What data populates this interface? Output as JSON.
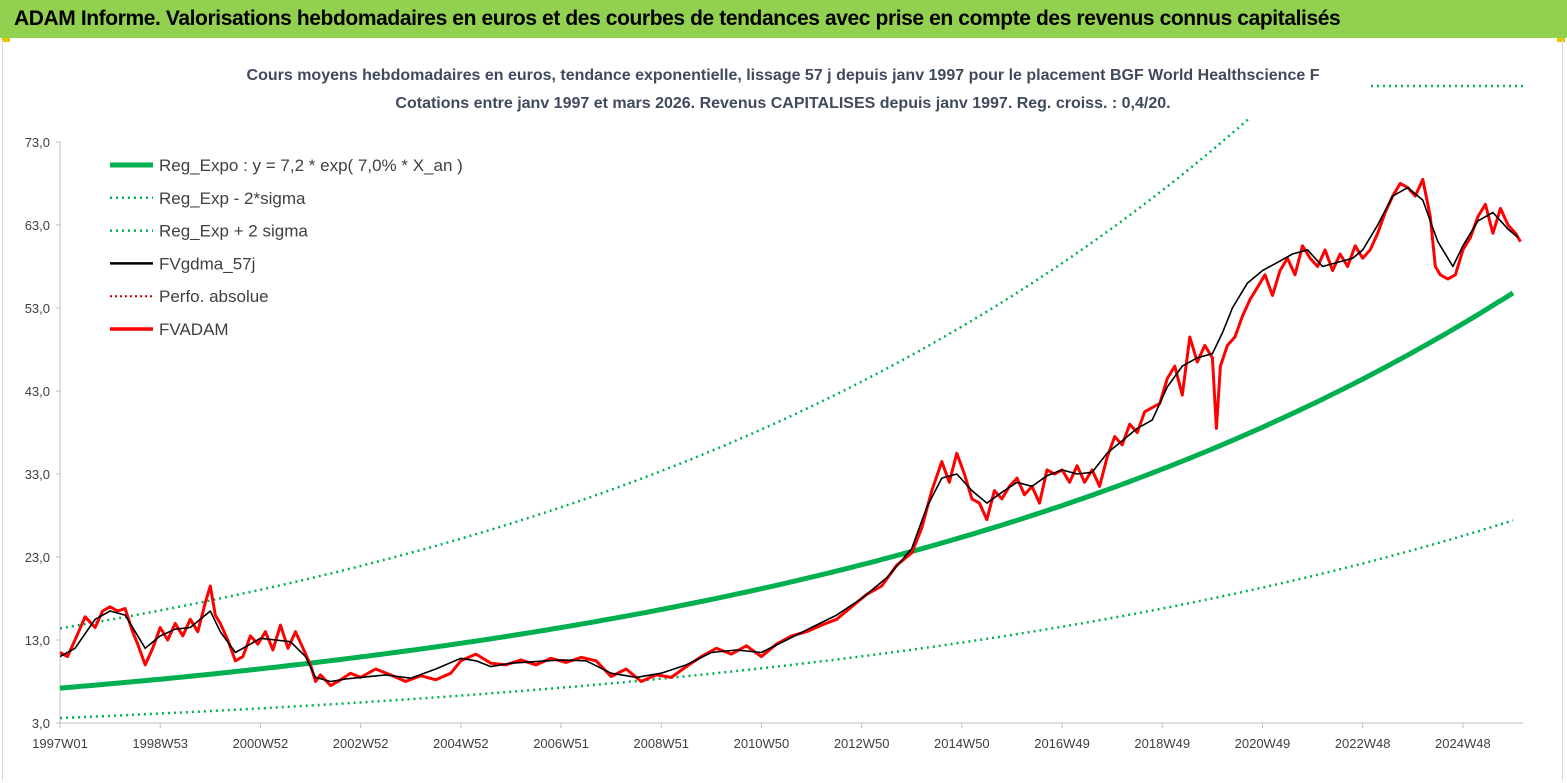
{
  "header": {
    "title": "ADAM Informe. Valorisations hebdomadaires en euros et des courbes de tendances avec prise en compte des revenus connus capitalisés"
  },
  "colors": {
    "header_bg": "#92d050",
    "trend_green": "#00b050",
    "price_red": "#ff0000",
    "smooth_black": "#000000",
    "perf_red": "#c00000"
  },
  "chart_data": {
    "type": "line",
    "title": "Cours moyens hebdomadaires en euros, tendance exponentielle, lissage 57 j depuis janv 1997  pour le placement BGF World Healthscience F",
    "subtitle": "Cotations entre janv 1997 et mars 2026. Revenus  CAPITALISES  depuis janv 1997. Reg. croiss. : 0,4/20.",
    "xlabel": "",
    "ylabel": "",
    "ylim": [
      3,
      77
    ],
    "xlim": [
      1997.0,
      2026.2
    ],
    "y_ticks": [
      "73,0",
      "63,0",
      "53,0",
      "43,0",
      "33,0",
      "23,0",
      "13,0",
      "3,0"
    ],
    "y_tick_values": [
      73,
      63,
      53,
      43,
      33,
      23,
      13,
      3
    ],
    "x_ticks": [
      "1997W01",
      "1998W53",
      "2000W52",
      "2002W52",
      "2004W52",
      "2006W51",
      "2008W51",
      "2010W50",
      "2012W50",
      "2014W50",
      "2016W49",
      "2018W49",
      "2020W49",
      "2022W48",
      "2024W48"
    ],
    "x_tick_values": [
      1997.0,
      1999.0,
      2001.0,
      2003.0,
      2005.0,
      2007.0,
      2009.0,
      2011.0,
      2013.0,
      2015.0,
      2017.0,
      2019.0,
      2021.0,
      2023.0,
      2025.0
    ],
    "grid": false,
    "legend_position": "top-left",
    "regression": {
      "a": 7.2,
      "rate": 0.07,
      "upper_factor": 2.0,
      "lower_factor": 0.5
    },
    "series": [
      {
        "name": "Reg_Expo : y = 7,2 * exp( 7,0% *  X_an )",
        "style": "solid-thick",
        "color": "#00b050"
      },
      {
        "name": "Reg_Exp - 2*sigma",
        "style": "dotted",
        "color": "#00b050"
      },
      {
        "name": "Reg_Exp + 2 sigma",
        "style": "dotted",
        "color": "#00b050"
      },
      {
        "name": "FVgdma_57j",
        "style": "solid",
        "color": "#000000",
        "x": [
          1997.0,
          1997.3,
          1997.7,
          1998.0,
          1998.3,
          1998.5,
          1998.7,
          1999.0,
          1999.3,
          1999.6,
          1999.9,
          2000.0,
          2000.2,
          2000.5,
          2000.8,
          2001.0,
          2001.3,
          2001.6,
          2001.9,
          2002.1,
          2002.4,
          2002.7,
          2003.0,
          2003.5,
          2004.0,
          2004.5,
          2005.0,
          2005.3,
          2005.6,
          2006.0,
          2006.5,
          2007.0,
          2007.5,
          2008.0,
          2008.5,
          2009.0,
          2009.5,
          2010.0,
          2010.5,
          2011.0,
          2011.5,
          2012.0,
          2012.5,
          2013.0,
          2013.5,
          2014.0,
          2014.3,
          2014.6,
          2014.9,
          2015.2,
          2015.5,
          2015.8,
          2016.1,
          2016.4,
          2016.7,
          2017.0,
          2017.3,
          2017.6,
          2017.9,
          2018.2,
          2018.5,
          2018.8,
          2019.1,
          2019.4,
          2019.7,
          2020.0,
          2020.2,
          2020.4,
          2020.7,
          2021.0,
          2021.3,
          2021.6,
          2021.9,
          2022.2,
          2022.5,
          2022.8,
          2023.0,
          2023.3,
          2023.6,
          2023.9,
          2024.2,
          2024.5,
          2024.8,
          2025.0,
          2025.3,
          2025.6,
          2025.9,
          2026.1
        ],
        "y": [
          11.0,
          12.0,
          15.5,
          16.5,
          16.0,
          14.0,
          12.0,
          13.5,
          14.3,
          14.5,
          16.0,
          16.5,
          14.0,
          11.5,
          12.5,
          13.2,
          13.0,
          12.8,
          11.0,
          8.5,
          8.0,
          8.3,
          8.5,
          8.8,
          8.4,
          9.5,
          10.8,
          10.5,
          9.8,
          10.2,
          10.4,
          10.6,
          10.5,
          9.0,
          8.5,
          9.0,
          10.0,
          11.5,
          11.8,
          11.5,
          13.0,
          14.5,
          16.0,
          18.0,
          20.5,
          24.0,
          29.0,
          32.5,
          33.0,
          31.0,
          29.5,
          30.8,
          32.0,
          31.5,
          32.8,
          33.5,
          33.0,
          33.2,
          35.5,
          37.0,
          38.5,
          39.5,
          43.5,
          46.0,
          47.0,
          47.5,
          50.0,
          53.0,
          56.0,
          57.5,
          58.5,
          59.5,
          60.0,
          58.0,
          58.5,
          59.0,
          60.0,
          63.0,
          66.5,
          67.5,
          66.0,
          61.0,
          58.0,
          60.5,
          63.5,
          64.5,
          62.5,
          61.5
        ]
      },
      {
        "name": "Perfo. absolue",
        "style": "dotted",
        "color": "#c00000"
      },
      {
        "name": "FVADAM",
        "style": "solid-thick",
        "color": "#ff0000",
        "x": [
          1997.0,
          1997.15,
          1997.3,
          1997.5,
          1997.7,
          1997.85,
          1998.0,
          1998.15,
          1998.3,
          1998.45,
          1998.55,
          1998.7,
          1998.85,
          1999.0,
          1999.15,
          1999.3,
          1999.45,
          1999.6,
          1999.75,
          1999.9,
          2000.0,
          2000.1,
          2000.2,
          2000.35,
          2000.5,
          2000.65,
          2000.8,
          2000.95,
          2001.1,
          2001.25,
          2001.4,
          2001.55,
          2001.7,
          2001.85,
          2002.0,
          2002.1,
          2002.2,
          2002.4,
          2002.6,
          2002.8,
          2003.0,
          2003.3,
          2003.6,
          2003.9,
          2004.2,
          2004.5,
          2004.8,
          2005.0,
          2005.3,
          2005.6,
          2005.9,
          2006.2,
          2006.5,
          2006.8,
          2007.1,
          2007.4,
          2007.7,
          2008.0,
          2008.3,
          2008.6,
          2008.9,
          2009.2,
          2009.5,
          2009.8,
          2010.1,
          2010.4,
          2010.7,
          2011.0,
          2011.3,
          2011.6,
          2011.9,
          2012.2,
          2012.5,
          2012.8,
          2013.1,
          2013.4,
          2013.7,
          2014.0,
          2014.2,
          2014.4,
          2014.6,
          2014.75,
          2014.9,
          2015.05,
          2015.2,
          2015.35,
          2015.5,
          2015.65,
          2015.8,
          2015.95,
          2016.1,
          2016.25,
          2016.4,
          2016.55,
          2016.7,
          2016.85,
          2017.0,
          2017.15,
          2017.3,
          2017.45,
          2017.6,
          2017.75,
          2017.9,
          2018.05,
          2018.2,
          2018.35,
          2018.5,
          2018.65,
          2018.8,
          2018.95,
          2019.1,
          2019.25,
          2019.4,
          2019.55,
          2019.7,
          2019.85,
          2020.0,
          2020.08,
          2020.16,
          2020.3,
          2020.45,
          2020.6,
          2020.75,
          2020.9,
          2021.05,
          2021.2,
          2021.35,
          2021.5,
          2021.65,
          2021.8,
          2021.95,
          2022.1,
          2022.25,
          2022.4,
          2022.55,
          2022.7,
          2022.85,
          2023.0,
          2023.15,
          2023.3,
          2023.45,
          2023.6,
          2023.75,
          2023.9,
          2024.05,
          2024.2,
          2024.35,
          2024.45,
          2024.55,
          2024.7,
          2024.85,
          2025.0,
          2025.15,
          2025.3,
          2025.45,
          2025.6,
          2025.75,
          2025.9,
          2026.05,
          2026.15
        ],
        "y": [
          11.5,
          11.0,
          13.0,
          15.8,
          14.5,
          16.5,
          17.0,
          16.5,
          16.8,
          14.0,
          12.5,
          10.0,
          12.0,
          14.5,
          13.0,
          15.0,
          13.5,
          15.5,
          14.0,
          17.5,
          19.5,
          16.0,
          15.0,
          13.0,
          10.5,
          11.0,
          13.5,
          12.5,
          14.0,
          11.8,
          14.8,
          12.0,
          14.0,
          12.0,
          10.0,
          8.0,
          8.8,
          7.5,
          8.2,
          9.0,
          8.5,
          9.5,
          8.8,
          8.0,
          8.7,
          8.2,
          9.0,
          10.5,
          11.3,
          10.2,
          10.0,
          10.6,
          10.0,
          10.8,
          10.3,
          10.9,
          10.5,
          8.6,
          9.5,
          8.0,
          8.8,
          8.5,
          9.8,
          11.0,
          12.0,
          11.3,
          12.3,
          11.0,
          12.5,
          13.5,
          14.0,
          14.8,
          15.5,
          17.0,
          18.5,
          19.5,
          22.0,
          23.5,
          26.5,
          31.0,
          34.5,
          32.0,
          35.5,
          33.0,
          30.0,
          29.5,
          27.5,
          31.0,
          30.0,
          31.5,
          32.5,
          30.5,
          31.5,
          29.5,
          33.5,
          33.0,
          33.5,
          32.0,
          34.0,
          32.0,
          33.5,
          31.5,
          35.0,
          37.5,
          36.5,
          39.0,
          38.0,
          40.5,
          41.0,
          41.5,
          44.5,
          46.0,
          42.5,
          49.5,
          46.5,
          48.5,
          47.0,
          38.5,
          46.0,
          48.5,
          49.5,
          52.0,
          54.0,
          55.5,
          57.0,
          54.5,
          57.5,
          59.0,
          57.0,
          60.5,
          59.0,
          58.0,
          60.0,
          57.5,
          59.5,
          58.0,
          60.5,
          59.0,
          60.0,
          62.0,
          64.5,
          66.5,
          68.0,
          67.5,
          66.5,
          68.5,
          64.0,
          58.0,
          57.0,
          56.5,
          57.0,
          60.0,
          61.5,
          64.0,
          65.5,
          62.0,
          65.0,
          63.0,
          62.0,
          61.0
        ]
      }
    ]
  }
}
